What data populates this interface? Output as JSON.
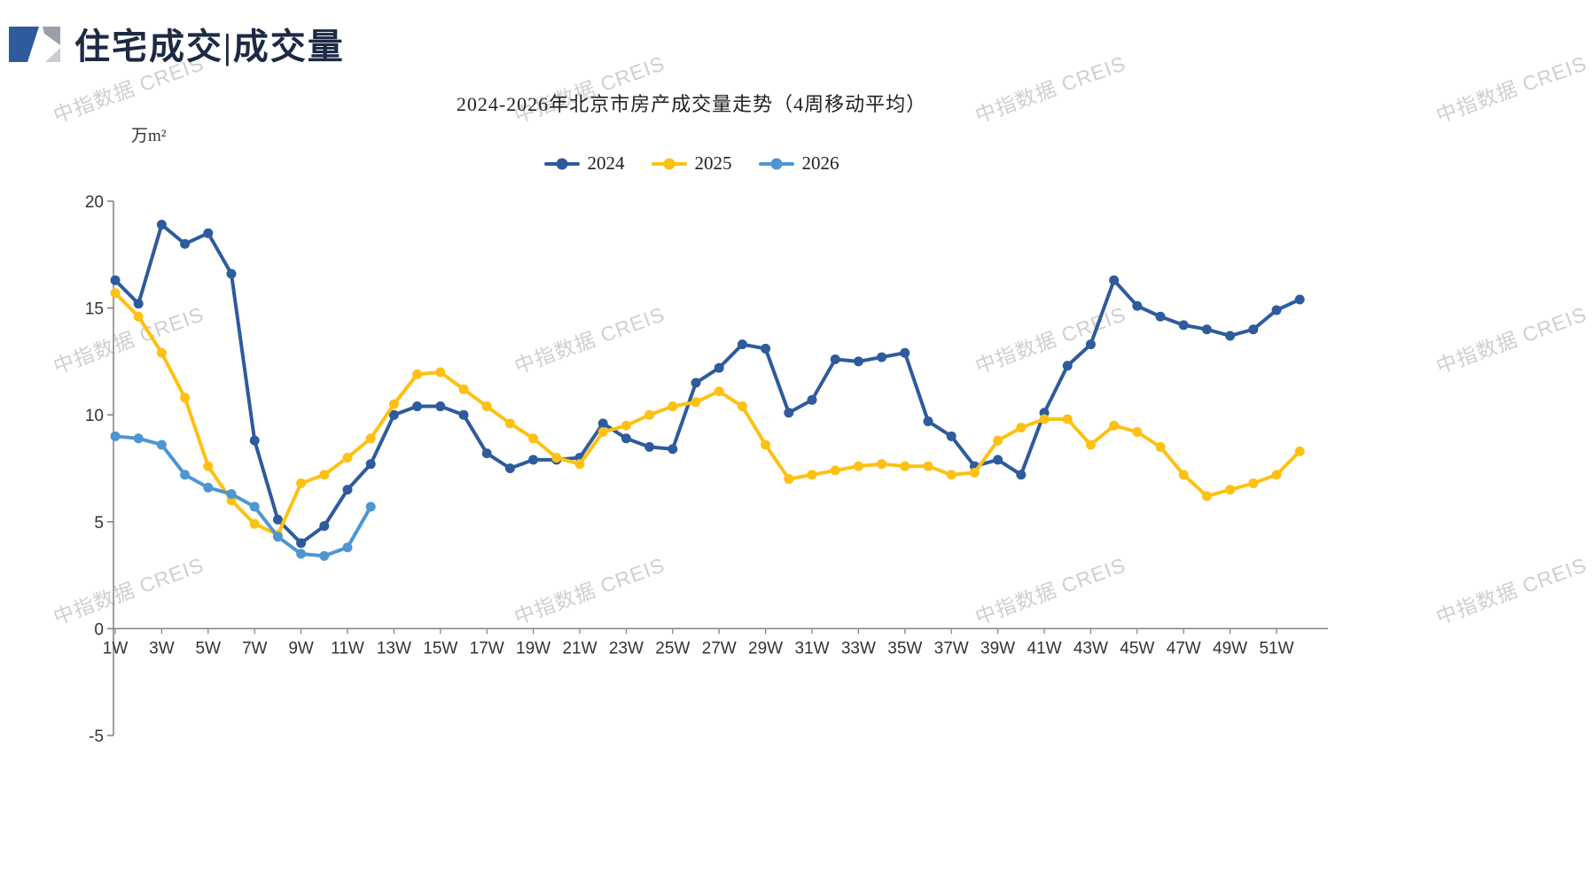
{
  "page": {
    "header_title": "住宅成交|成交量"
  },
  "watermark": {
    "text": "中指数据 CREIS"
  },
  "chart_data": {
    "type": "line",
    "title": "2024-2026年北京市房产成交量走势（4周移动平均）",
    "unit_label": "万m²",
    "xlabel": "",
    "ylabel": "万m²",
    "ylim": [
      -5,
      20
    ],
    "yticks": [
      -5,
      0,
      5,
      10,
      15,
      20
    ],
    "grid": false,
    "legend_position": "top-center",
    "x_tick_labels": [
      "1W",
      "3W",
      "5W",
      "7W",
      "9W",
      "11W",
      "13W",
      "15W",
      "17W",
      "19W",
      "21W",
      "23W",
      "25W",
      "27W",
      "29W",
      "31W",
      "33W",
      "35W",
      "37W",
      "39W",
      "41W",
      "43W",
      "45W",
      "47W",
      "49W",
      "51W"
    ],
    "series": [
      {
        "name": "2024",
        "color": "#2E5B9C",
        "values": [
          16.3,
          15.2,
          18.9,
          18.0,
          18.5,
          16.6,
          8.8,
          5.1,
          4.0,
          4.8,
          6.5,
          7.7,
          10.0,
          10.4,
          10.4,
          10.0,
          8.2,
          7.5,
          7.9,
          7.9,
          8.0,
          9.6,
          8.9,
          8.5,
          8.4,
          11.5,
          12.2,
          13.3,
          13.1,
          10.1,
          10.7,
          12.6,
          12.5,
          12.7,
          12.9,
          9.7,
          9.0,
          7.6,
          7.9,
          7.2,
          10.1,
          12.3,
          13.3,
          16.3,
          15.1,
          14.6,
          14.2,
          14.0,
          13.7,
          14.0,
          14.9,
          15.4
        ]
      },
      {
        "name": "2025",
        "color": "#FDC113",
        "values": [
          15.7,
          14.6,
          12.9,
          10.8,
          7.6,
          6.0,
          4.9,
          4.4,
          6.8,
          7.2,
          8.0,
          8.9,
          10.5,
          11.9,
          12.0,
          11.2,
          10.4,
          9.6,
          8.9,
          8.0,
          7.7,
          9.2,
          9.5,
          10.0,
          10.4,
          10.6,
          11.1,
          10.4,
          8.6,
          7.0,
          7.2,
          7.4,
          7.6,
          7.7,
          7.6,
          7.6,
          7.2,
          7.3,
          8.8,
          9.4,
          9.8,
          9.8,
          8.6,
          9.5,
          9.2,
          8.5,
          7.2,
          6.2,
          6.5,
          6.8,
          7.2,
          8.3
        ]
      },
      {
        "name": "2026",
        "color": "#4D96D2",
        "values": [
          9.0,
          8.9,
          8.6,
          7.2,
          6.6,
          6.3,
          5.7,
          4.3,
          3.5,
          3.4,
          3.8,
          5.7
        ]
      }
    ]
  }
}
